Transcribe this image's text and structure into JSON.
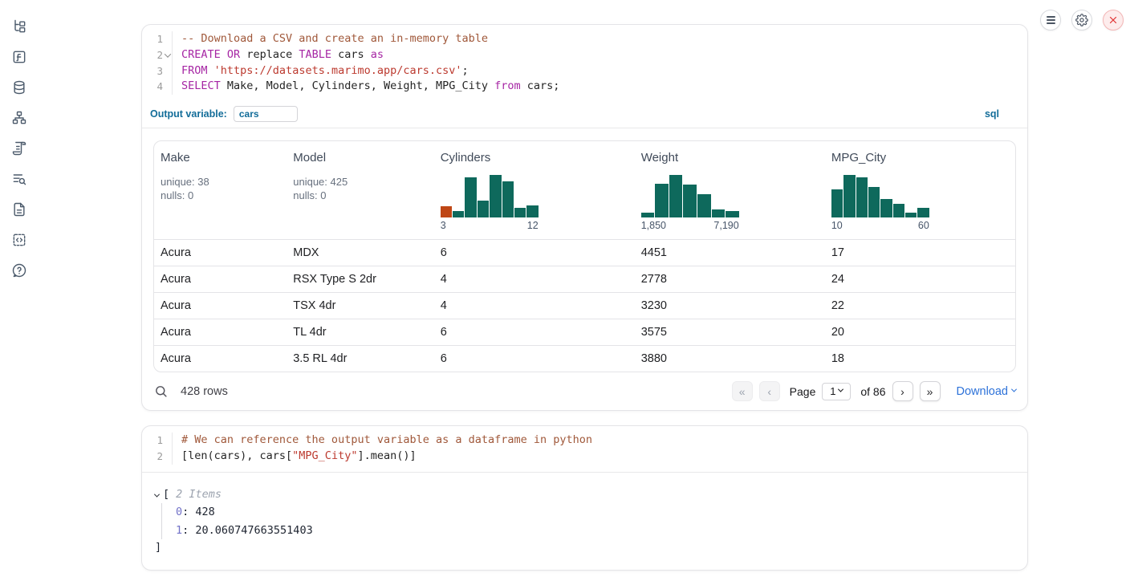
{
  "sidebar": {
    "items": [
      {
        "name": "file-explorer-icon"
      },
      {
        "name": "functions-icon"
      },
      {
        "name": "datasources-icon"
      },
      {
        "name": "dependency-graph-icon"
      },
      {
        "name": "scratchpad-icon"
      },
      {
        "name": "logs-icon"
      },
      {
        "name": "documentation-icon"
      },
      {
        "name": "snippets-icon"
      },
      {
        "name": "help-icon"
      }
    ]
  },
  "top_controls": {
    "menu": "menu",
    "settings": "settings",
    "shutdown": "shutdown"
  },
  "sql_cell": {
    "lines": [
      {
        "number": "1",
        "fold": false,
        "tokens": [
          {
            "t": "-- Download a CSV and create an in-memory table",
            "c": "comment"
          }
        ]
      },
      {
        "number": "2",
        "fold": true,
        "tokens": [
          {
            "t": "CREATE",
            "c": "kw"
          },
          {
            "t": " ",
            "c": "plain"
          },
          {
            "t": "OR",
            "c": "kw"
          },
          {
            "t": " replace ",
            "c": "plain"
          },
          {
            "t": "TABLE",
            "c": "kw"
          },
          {
            "t": " cars ",
            "c": "plain"
          },
          {
            "t": "as",
            "c": "kw"
          }
        ]
      },
      {
        "number": "3",
        "fold": false,
        "tokens": [
          {
            "t": "FROM",
            "c": "kw"
          },
          {
            "t": " ",
            "c": "plain"
          },
          {
            "t": "'https://datasets.marimo.app/cars.csv'",
            "c": "str"
          },
          {
            "t": ";",
            "c": "plain"
          }
        ]
      },
      {
        "number": "4",
        "fold": false,
        "tokens": [
          {
            "t": "SELECT",
            "c": "kw"
          },
          {
            "t": " Make, Model, Cylinders, Weight, MPG_City ",
            "c": "plain"
          },
          {
            "t": "from",
            "c": "kw"
          },
          {
            "t": " cars;",
            "c": "plain"
          }
        ]
      }
    ],
    "output_variable_label": "Output variable:",
    "output_variable_value": "cars",
    "language_badge": "sql"
  },
  "table": {
    "columns": [
      {
        "label": "Make",
        "stats": [
          "unique: 38",
          "nulls: 0"
        ]
      },
      {
        "label": "Model",
        "stats": [
          "unique: 425",
          "nulls: 0"
        ]
      },
      {
        "label": "Cylinders",
        "hist": {
          "bars": [
            0.26,
            0.16,
            0.94,
            0.4,
            1.0,
            0.84,
            0.23,
            0.29
          ],
          "orange_first": true,
          "min": "3",
          "max": "12"
        }
      },
      {
        "label": "Weight",
        "hist": {
          "bars": [
            0.12,
            0.8,
            1.0,
            0.78,
            0.54,
            0.19,
            0.15
          ],
          "orange_first": false,
          "min": "1,850",
          "max": "7,190"
        }
      },
      {
        "label": "MPG_City",
        "hist": {
          "bars": [
            0.66,
            1.0,
            0.95,
            0.72,
            0.43,
            0.32,
            0.12,
            0.22
          ],
          "orange_first": false,
          "min": "10",
          "max": "60"
        }
      }
    ],
    "rows": [
      [
        "Acura",
        "MDX",
        "6",
        "4451",
        "17"
      ],
      [
        "Acura",
        "RSX Type S 2dr",
        "4",
        "2778",
        "24"
      ],
      [
        "Acura",
        "TSX 4dr",
        "4",
        "3230",
        "22"
      ],
      [
        "Acura",
        "TL 4dr",
        "6",
        "3575",
        "20"
      ],
      [
        "Acura",
        "3.5 RL 4dr",
        "6",
        "3880",
        "18"
      ]
    ],
    "footer": {
      "row_count": "428 rows",
      "first_page": "«",
      "prev_page": "‹",
      "next_page": "›",
      "last_page": "»",
      "page_label": "Page",
      "page_value": "1",
      "of_label": "of 86",
      "download_label": "Download"
    }
  },
  "python_cell": {
    "lines": [
      {
        "number": "1",
        "fold": false,
        "tokens": [
          {
            "t": "# We can reference the output variable as a dataframe in python",
            "c": "comment"
          }
        ]
      },
      {
        "number": "2",
        "fold": false,
        "tokens": [
          {
            "t": "[len(cars), cars[",
            "c": "plain"
          },
          {
            "t": "\"MPG_City\"",
            "c": "str"
          },
          {
            "t": "].mean()]",
            "c": "plain"
          }
        ]
      }
    ],
    "output": {
      "bracket_open": "[",
      "items_label": "2 Items",
      "entries": [
        {
          "key": "0",
          "value": "428"
        },
        {
          "key": "1",
          "value": "20.060747663551403"
        }
      ],
      "bracket_close": "]"
    }
  },
  "colors": {
    "hist_green": "#0e695c",
    "hist_orange": "#bf4716",
    "accent_teal": "#136d99",
    "link_blue": "#2d72d9",
    "keyword_purple": "#a626a4",
    "string_red": "#bc3a2f",
    "comment_brown": "#a0583a"
  }
}
